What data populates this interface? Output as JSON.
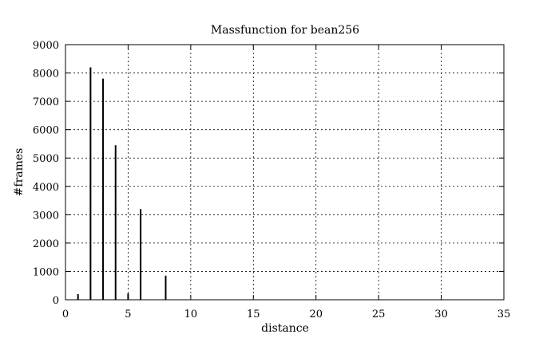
{
  "chart_data": {
    "type": "bar",
    "title": "Massfunction for bean256",
    "xlabel": "distance",
    "ylabel": "#frames",
    "xlim": [
      0,
      35
    ],
    "ylim": [
      0,
      9000
    ],
    "grid": true,
    "x_ticks": [
      "0",
      "5",
      "10",
      "15",
      "20",
      "25",
      "30",
      "35"
    ],
    "y_ticks": [
      "0",
      "1000",
      "2000",
      "3000",
      "4000",
      "5000",
      "6000",
      "7000",
      "8000",
      "9000"
    ],
    "x": [
      1,
      2,
      3,
      4,
      5,
      6,
      8
    ],
    "values": [
      200,
      8200,
      7800,
      5450,
      220,
      3200,
      850
    ]
  }
}
